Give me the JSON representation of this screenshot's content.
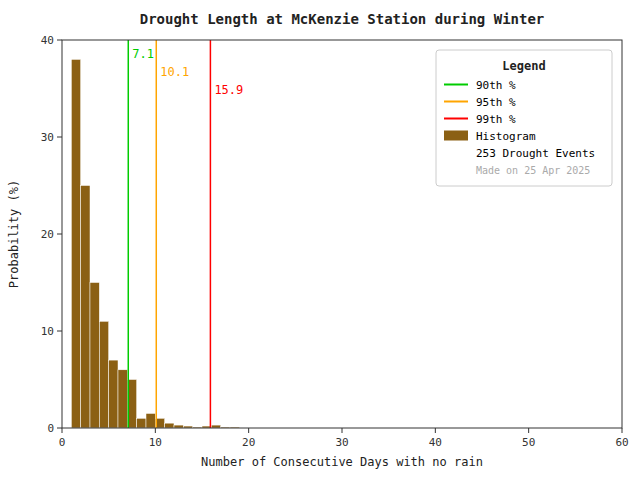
{
  "chart_data": {
    "type": "histogram",
    "title": "Drought Length at McKenzie Station during Winter",
    "x_label": "Number of Consecutive Days with no rain",
    "y_label": "Probability (%)",
    "name": "Histogram",
    "color": "#8B6014",
    "bins": [
      1,
      2,
      3,
      4,
      5,
      6,
      7,
      8,
      9,
      10,
      11,
      12,
      13,
      14,
      15,
      16,
      17,
      18,
      19,
      20,
      21,
      22,
      23,
      24,
      25,
      26,
      27,
      28,
      29,
      30,
      31,
      32,
      33,
      34,
      35,
      36,
      37,
      38,
      39,
      40,
      41,
      42,
      43,
      44,
      45,
      46,
      47,
      48,
      49,
      50,
      51,
      52,
      53,
      54,
      55,
      56,
      57,
      58,
      59,
      60
    ],
    "values": [
      38.0,
      25.0,
      15.0,
      11.0,
      7.0,
      6.0,
      5.0,
      1.0,
      1.5,
      1.0,
      0.5,
      0.3,
      0.2,
      0.1,
      0.2,
      0.3,
      0.1,
      0.1,
      0.0,
      0.0,
      0.0,
      0.0,
      0.0,
      0.0,
      0.0,
      0.0,
      0.0,
      0.0,
      0.0,
      0.0,
      0.0,
      0.0,
      0.0,
      0.0,
      0.0,
      0.0,
      0.0,
      0.0,
      0.0,
      0.0,
      0.0,
      0.0,
      0.0,
      0.0,
      0.0,
      0.0,
      0.0,
      0.0,
      0.0,
      0.0,
      0.0,
      0.0,
      0.0,
      0.0,
      0.0,
      0.0,
      0.0,
      0.0,
      0.0
    ],
    "percentiles": [
      {
        "name": "90th %",
        "value": 7.1,
        "color": "#00CC00"
      },
      {
        "name": "95th %",
        "value": 10.1,
        "color": "#FFA500"
      },
      {
        "name": "99th %",
        "value": 15.9,
        "color": "#FF0000"
      }
    ],
    "xlim": [
      0,
      60
    ],
    "ylim": [
      0,
      40
    ],
    "xticks": [
      0,
      10,
      20,
      30,
      40,
      50,
      60
    ],
    "yticks": [
      0,
      10,
      20,
      30,
      40
    ],
    "grid": false,
    "legend": "upper right",
    "legend_title": "Legend",
    "legend_notes": [
      "253 Drought Events",
      "Made on 25 Apr 2025"
    ]
  }
}
